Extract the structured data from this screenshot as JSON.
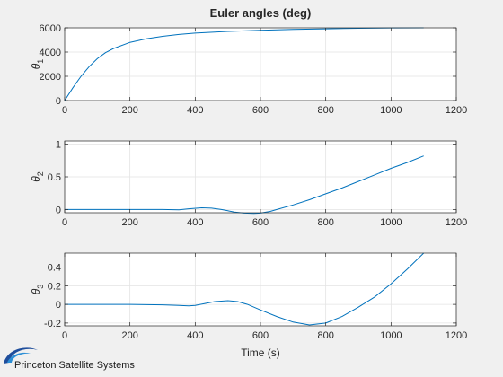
{
  "chart_data": [
    {
      "type": "line",
      "title": "Euler angles (deg)",
      "xlabel": "",
      "ylabel": "θ",
      "ylabel_subscript": "1",
      "xlim": [
        0,
        1200
      ],
      "ylim": [
        0,
        6000
      ],
      "xticks": [
        0,
        200,
        400,
        600,
        800,
        1000,
        1200
      ],
      "yticks": [
        0,
        2000,
        4000,
        6000
      ],
      "grid": true,
      "color": "#0072bd",
      "series": [
        {
          "x": [
            0,
            25,
            50,
            75,
            100,
            125,
            150,
            200,
            250,
            300,
            350,
            400,
            500,
            600,
            700,
            800,
            900,
            1000,
            1100
          ],
          "y": [
            0,
            1050,
            2000,
            2800,
            3450,
            3950,
            4300,
            4800,
            5100,
            5300,
            5450,
            5560,
            5700,
            5800,
            5870,
            5920,
            5960,
            5990,
            6000
          ]
        }
      ]
    },
    {
      "type": "line",
      "title": "",
      "xlabel": "",
      "ylabel": "θ",
      "ylabel_subscript": "2",
      "xlim": [
        0,
        1200
      ],
      "ylim": [
        -0.05,
        1.05
      ],
      "xticks": [
        0,
        200,
        400,
        600,
        800,
        1000,
        1200
      ],
      "yticks": [
        0,
        0.5,
        1
      ],
      "grid": true,
      "color": "#0072bd",
      "series": [
        {
          "x": [
            0,
            100,
            200,
            300,
            350,
            380,
            420,
            450,
            480,
            500,
            520,
            550,
            580,
            600,
            630,
            650,
            700,
            750,
            800,
            850,
            900,
            950,
            1000,
            1050,
            1100
          ],
          "y": [
            0,
            0,
            0,
            0,
            -0.005,
            0.01,
            0.025,
            0.02,
            0,
            -0.02,
            -0.04,
            -0.055,
            -0.06,
            -0.055,
            -0.03,
            0,
            0.07,
            0.15,
            0.24,
            0.33,
            0.43,
            0.53,
            0.63,
            0.72,
            0.82
          ]
        }
      ]
    },
    {
      "type": "line",
      "title": "",
      "xlabel": "Time (s)",
      "ylabel": "θ",
      "ylabel_subscript": "3",
      "xlim": [
        0,
        1200
      ],
      "ylim": [
        -0.23,
        0.55
      ],
      "xticks": [
        0,
        200,
        400,
        600,
        800,
        1000,
        1200
      ],
      "yticks": [
        -0.2,
        0,
        0.2,
        0.4
      ],
      "grid": true,
      "color": "#0072bd",
      "series": [
        {
          "x": [
            0,
            100,
            200,
            300,
            350,
            380,
            400,
            430,
            460,
            500,
            530,
            560,
            600,
            650,
            700,
            750,
            800,
            850,
            900,
            950,
            1000,
            1050,
            1100
          ],
          "y": [
            0,
            0,
            0,
            -0.005,
            -0.01,
            -0.015,
            -0.01,
            0.01,
            0.03,
            0.04,
            0.03,
            0,
            -0.06,
            -0.13,
            -0.19,
            -0.22,
            -0.2,
            -0.13,
            -0.03,
            0.08,
            0.22,
            0.38,
            0.55
          ]
        }
      ]
    }
  ],
  "logo": {
    "text": "Princeton Satellite Systems",
    "colors": [
      "#1f4e9c",
      "#2c8fd6"
    ]
  }
}
